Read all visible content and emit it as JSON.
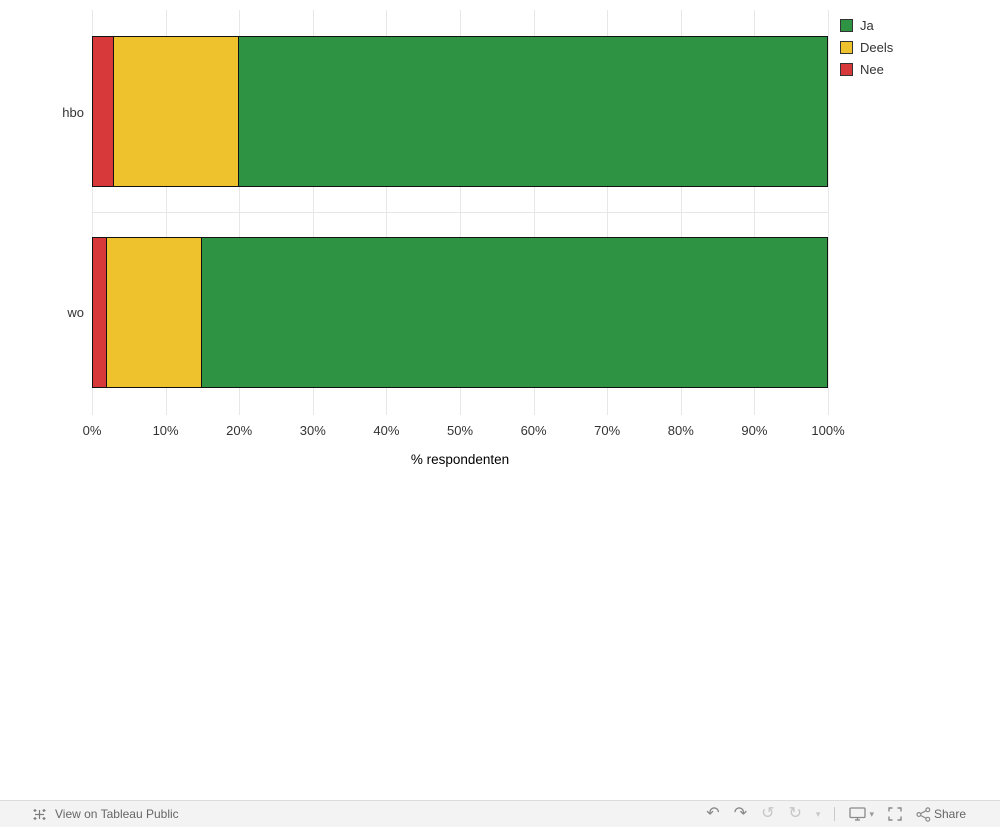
{
  "chart_data": {
    "type": "bar",
    "orientation": "horizontal",
    "stacked": true,
    "categories": [
      "hbo",
      "wo"
    ],
    "series": [
      {
        "name": "Ja",
        "color": "#2e9342",
        "values": [
          80,
          85
        ]
      },
      {
        "name": "Deels",
        "color": "#eec22d",
        "values": [
          17,
          13
        ]
      },
      {
        "name": "Nee",
        "color": "#d7393b",
        "values": [
          3,
          2
        ]
      }
    ],
    "segment_order_left_to_right": [
      "Nee",
      "Deels",
      "Ja"
    ],
    "xlabel": "% respondenten",
    "x_ticks": [
      "0%",
      "10%",
      "20%",
      "30%",
      "40%",
      "50%",
      "60%",
      "70%",
      "80%",
      "90%",
      "100%"
    ],
    "xlim": [
      0,
      100
    ],
    "grid": true,
    "legend_position": "top-right"
  },
  "legend": {
    "items": [
      {
        "label": "Ja",
        "color": "#2e9342"
      },
      {
        "label": "Deels",
        "color": "#eec22d"
      },
      {
        "label": "Nee",
        "color": "#d7393b"
      }
    ]
  },
  "toolbar": {
    "view_label": "View on Tableau Public",
    "share_label": "Share",
    "undo_glyph": "↶",
    "redo_glyph": "↷",
    "revert_glyph": "↺",
    "refresh_glyph": "↻",
    "caret_glyph": "▾"
  }
}
